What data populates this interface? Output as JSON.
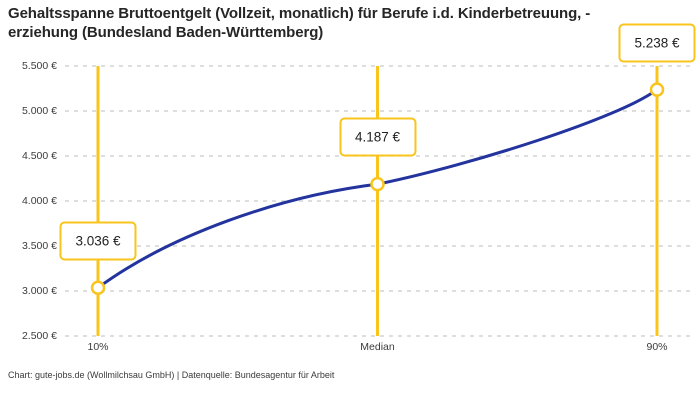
{
  "footer": {
    "credit": "Chart: gute-jobs.de (Wollmilchsau GmbH) | Datenquelle: Bundesagentur für Arbeit"
  },
  "chart_data": {
    "type": "line",
    "title": "Gehaltsspanne Bruttoentgelt (Vollzeit, monatlich) für Berufe i.d. Kinderbetreuung, -erziehung (Bundesland Baden-Württemberg)",
    "categories": [
      "10%",
      "Median",
      "90%"
    ],
    "values": [
      3036,
      4187,
      5238
    ],
    "value_labels": [
      "3.036 €",
      "4.187 €",
      "5.238 €"
    ],
    "ylim": [
      2500,
      5500
    ],
    "y_tick_step": 500,
    "y_ticks": [
      {
        "value": 5500,
        "label": "5.500 €"
      },
      {
        "value": 5000,
        "label": "5.000 €"
      },
      {
        "value": 4500,
        "label": "4.500 €"
      },
      {
        "value": 4000,
        "label": "4.000 €"
      },
      {
        "value": 3500,
        "label": "3.500 €"
      },
      {
        "value": 3000,
        "label": "3.000 €"
      },
      {
        "value": 2500,
        "label": "2.500 €"
      }
    ],
    "grid": "horizontal-dashed",
    "legend": "none",
    "colors": {
      "line": "#23349e",
      "accent": "#f9c51d",
      "grid": "#c9c9c9",
      "marker_fill": "#ffffff",
      "title_text": "#262626",
      "axis_text": "#3c3c3c"
    }
  }
}
